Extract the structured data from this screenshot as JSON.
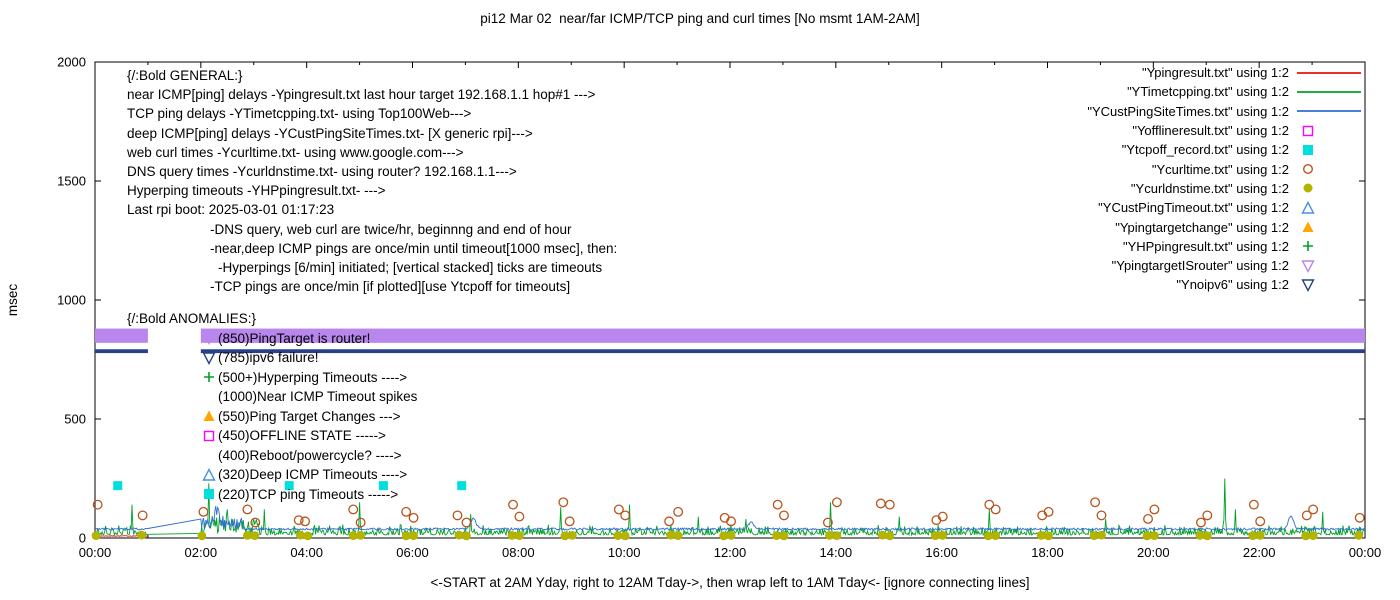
{
  "title": "pi12 Mar 02  near/far ICMP/TCP ping and curl times [No msmt 1AM-2AM]",
  "axes": {
    "y_label": "msec",
    "y_ticks": [
      "0",
      "500",
      "1000",
      "1500",
      "2000"
    ],
    "x_ticks": [
      "00:00",
      "02:00",
      "04:00",
      "06:00",
      "08:00",
      "10:00",
      "12:00",
      "14:00",
      "16:00",
      "18:00",
      "20:00",
      "22:00",
      "00:00"
    ],
    "x_label": "<-START at 2AM Yday, right to 12AM Tday->, then wrap left to 1AM Tday<- [ignore connecting lines]"
  },
  "legend": [
    {
      "label": "\"Ypingresult.txt\" using 1:2",
      "marker": "line",
      "color": "#e8120c"
    },
    {
      "label": "\"YTimetcpping.txt\" using 1:2",
      "marker": "line",
      "color": "#00a028"
    },
    {
      "label": "\"YCustPingSiteTimes.txt\" using 1:2",
      "marker": "line",
      "color": "#2f6fd0"
    },
    {
      "label": "\"Yofflineresult.txt\" using 1:2",
      "marker": "square-open",
      "color": "#ff00ff"
    },
    {
      "label": "\"Ytcpoff_record.txt\" using 1:2",
      "marker": "square-filled",
      "color": "#00dede"
    },
    {
      "label": "\"Ycurltime.txt\" using 1:2",
      "marker": "circle-open",
      "color": "#b8541a"
    },
    {
      "label": "\"Ycurldnstime.txt\" using 1:2",
      "marker": "circle-filled",
      "color": "#b3b300"
    },
    {
      "label": "\"YCustPingTimeout.txt\" using 1:2",
      "marker": "triangle-open",
      "color": "#4a90e2"
    },
    {
      "label": "\"Ypingtargetchange\" using 1:2",
      "marker": "triangle-filled",
      "color": "#ffa500"
    },
    {
      "label": "\"YHPpingresult.txt\" using 1:2",
      "marker": "plus",
      "color": "#00a028"
    },
    {
      "label": "\"YpingtargetISrouter\" using 1:2",
      "marker": "nabla-open",
      "color": "#b886ec"
    },
    {
      "label": "\"Ynoipv6\" using 1:2",
      "marker": "nabla-open",
      "color": "#27408b"
    }
  ],
  "general_notes": [
    {
      "text": "{/:Bold GENERAL:}",
      "indent": 0
    },
    {
      "text": "near ICMP[ping] delays -Ypingresult.txt last hour target 192.168.1.1 hop#1 --->",
      "indent": 0
    },
    {
      "text": "TCP ping delays -YTimetcpping.txt- using Top100Web--->",
      "indent": 0
    },
    {
      "text": "deep ICMP[ping] delays -YCustPingSiteTimes.txt- [X generic rpi]--->",
      "indent": 0
    },
    {
      "text": "web curl times -Ycurltime.txt- using www.google.com--->",
      "indent": 0
    },
    {
      "text": "DNS query times -Ycurldnstime.txt- using router? 192.168.1.1--->",
      "indent": 0
    },
    {
      "text": "Hyperping timeouts -YHPpingresult.txt- --->",
      "indent": 0
    },
    {
      "text": "Last rpi boot: 2025-03-01 01:17:23",
      "indent": 0
    },
    {
      "text": "-DNS query, web curl are twice/hr, beginnng and end of hour",
      "indent": 1
    },
    {
      "text": "-near,deep ICMP pings are once/min until timeout[1000 msec], then:",
      "indent": 1
    },
    {
      "text": "-Hyperpings [6/min] initiated; [vertical stacked] ticks are timeouts",
      "indent": 2
    },
    {
      "text": "-TCP pings are once/min [if plotted][use Ytcpoff for timeouts]",
      "indent": 1
    }
  ],
  "anomalies_title": "{/:Bold ANOMALIES:}",
  "anomalies": [
    {
      "marker": "nabla-open",
      "color": "#b886ec",
      "text": "(850)PingTarget is router!"
    },
    {
      "marker": "nabla-open",
      "color": "#27408b",
      "text": "(785)ipv6 failure!"
    },
    {
      "marker": "plus",
      "color": "#00a028",
      "text": "(500+)Hyperping Timeouts ---->"
    },
    {
      "marker": "none",
      "color": "",
      "text": "(1000)Near ICMP Timeout spikes"
    },
    {
      "marker": "triangle-filled",
      "color": "#ffa500",
      "text": "(550)Ping Target Changes --->"
    },
    {
      "marker": "square-open",
      "color": "#ff00ff",
      "text": "(450)OFFLINE STATE ----->"
    },
    {
      "marker": "none",
      "color": "",
      "text": "(400)Reboot/powercycle? ---->"
    },
    {
      "marker": "triangle-open",
      "color": "#4a90e2",
      "text": "(320)Deep ICMP Timeouts ---->"
    },
    {
      "marker": "square-filled",
      "color": "#00dede",
      "text": "(220)TCP ping Timeouts ----->"
    }
  ],
  "chart_data": {
    "type": "line",
    "title": "pi12 Mar 02  near/far ICMP/TCP ping and curl times [No msmt 1AM-2AM]",
    "xlabel": "<-START at 2AM Yday, right to 12AM Tday->, then wrap left to 1AM Tday<- [ignore connecting lines]",
    "ylabel": "msec",
    "x_unit": "hours",
    "x_range": [
      0,
      24
    ],
    "ylim": [
      0,
      2000
    ],
    "grid": false,
    "legend_position": "top-right",
    "no_measurement_window": [
      1,
      2
    ],
    "bands": [
      {
        "series": "YpingtargetISrouter",
        "y": 850,
        "thickness_msec": 60,
        "color": "#b886ec",
        "segments": [
          [
            0,
            1
          ],
          [
            2,
            24
          ]
        ]
      },
      {
        "series": "Ynoipv6",
        "y": 785,
        "thickness_msec": 16,
        "color": "#27408b",
        "segments": [
          [
            0,
            1
          ],
          [
            2,
            24
          ]
        ]
      }
    ],
    "series": [
      {
        "name": "Ypingresult.txt",
        "color": "#e8120c",
        "range": [
          0,
          1
        ],
        "base": 7,
        "noise": 3,
        "skew": false,
        "spikes": [],
        "bumps": [],
        "bursts": []
      },
      {
        "name": "YTimetcpping.txt",
        "color": "#00a028",
        "range": [
          0,
          24
        ],
        "base": 13,
        "noise": 45,
        "skew": true,
        "spikes": [
          [
            0.7,
            140
          ],
          [
            2.15,
            230
          ],
          [
            2.5,
            120
          ],
          [
            3.2,
            120
          ],
          [
            5.0,
            150
          ],
          [
            7.1,
            100
          ],
          [
            8.8,
            130
          ],
          [
            10.1,
            140
          ],
          [
            11.4,
            90
          ],
          [
            12.3,
            80
          ],
          [
            13.9,
            150
          ],
          [
            15.2,
            90
          ],
          [
            16.9,
            120
          ],
          [
            19.1,
            80
          ],
          [
            21.35,
            250
          ],
          [
            21.55,
            120
          ],
          [
            23.2,
            110
          ]
        ],
        "bumps": [],
        "bursts": [
          {
            "range": [
              2.05,
              3.1
            ],
            "extra": 55
          }
        ]
      },
      {
        "name": "YCustPingSiteTimes.txt",
        "color": "#2f6fd0",
        "range": [
          0,
          24
        ],
        "base": 33,
        "noise": 9,
        "skew": false,
        "spikes": [],
        "bumps": [
          [
            2.3,
            50
          ],
          [
            7.15,
            45
          ],
          [
            12.4,
            28
          ],
          [
            22.6,
            55
          ]
        ],
        "bursts": [
          {
            "range": [
              2.0,
              2.8
            ],
            "extra": 48
          }
        ]
      }
    ],
    "points": [
      {
        "name": "Ycurltime.txt",
        "marker": "circle-open",
        "color": "#b8541a",
        "data": [
          [
            0.05,
            140
          ],
          [
            0.9,
            95
          ],
          [
            2.05,
            110
          ],
          [
            2.88,
            120
          ],
          [
            3.03,
            65
          ],
          [
            3.85,
            75
          ],
          [
            3.97,
            70
          ],
          [
            4.88,
            120
          ],
          [
            5.02,
            65
          ],
          [
            5.88,
            110
          ],
          [
            6.02,
            85
          ],
          [
            6.85,
            95
          ],
          [
            7.02,
            65
          ],
          [
            7.9,
            140
          ],
          [
            8.02,
            90
          ],
          [
            8.85,
            150
          ],
          [
            8.97,
            70
          ],
          [
            9.9,
            120
          ],
          [
            10.02,
            95
          ],
          [
            10.85,
            70
          ],
          [
            11.02,
            110
          ],
          [
            11.9,
            85
          ],
          [
            12.02,
            70
          ],
          [
            12.9,
            140
          ],
          [
            13.02,
            95
          ],
          [
            13.85,
            65
          ],
          [
            14.02,
            150
          ],
          [
            14.85,
            145
          ],
          [
            15.02,
            140
          ],
          [
            15.9,
            75
          ],
          [
            16.02,
            90
          ],
          [
            16.9,
            140
          ],
          [
            17.02,
            120
          ],
          [
            17.9,
            95
          ],
          [
            18.02,
            110
          ],
          [
            18.9,
            150
          ],
          [
            19.02,
            95
          ],
          [
            19.9,
            80
          ],
          [
            20.02,
            120
          ],
          [
            20.9,
            65
          ],
          [
            21.02,
            95
          ],
          [
            21.9,
            140
          ],
          [
            22.02,
            70
          ],
          [
            22.9,
            95
          ],
          [
            23.02,
            120
          ],
          [
            23.9,
            85
          ]
        ]
      },
      {
        "name": "Ycurldnstime.txt",
        "marker": "circle-filled",
        "color": "#b3b300",
        "data": [
          [
            0.02,
            10
          ],
          [
            0.88,
            12
          ],
          [
            2.02,
            9
          ],
          [
            2.88,
            11
          ],
          [
            3.02,
            10
          ],
          [
            3.88,
            12
          ],
          [
            4.02,
            9
          ],
          [
            4.88,
            10
          ],
          [
            5.02,
            11
          ],
          [
            5.88,
            9
          ],
          [
            6.02,
            10
          ],
          [
            6.88,
            12
          ],
          [
            7.02,
            9
          ],
          [
            7.88,
            11
          ],
          [
            8.02,
            10
          ],
          [
            8.88,
            9
          ],
          [
            9.02,
            11
          ],
          [
            9.88,
            10
          ],
          [
            10.02,
            9
          ],
          [
            10.88,
            12
          ],
          [
            11.02,
            10
          ],
          [
            11.88,
            9
          ],
          [
            12.02,
            11
          ],
          [
            12.88,
            10
          ],
          [
            13.02,
            9
          ],
          [
            13.88,
            11
          ],
          [
            14.02,
            10
          ],
          [
            14.88,
            12
          ],
          [
            15.02,
            9
          ],
          [
            15.88,
            10
          ],
          [
            16.02,
            11
          ],
          [
            16.88,
            9
          ],
          [
            17.02,
            10
          ],
          [
            17.88,
            11
          ],
          [
            18.02,
            9
          ],
          [
            18.88,
            10
          ],
          [
            19.02,
            12
          ],
          [
            19.88,
            9
          ],
          [
            20.02,
            10
          ],
          [
            20.88,
            11
          ],
          [
            21.02,
            9
          ],
          [
            21.88,
            10
          ],
          [
            22.02,
            11
          ],
          [
            22.88,
            9
          ],
          [
            23.02,
            10
          ],
          [
            23.88,
            11
          ]
        ]
      },
      {
        "name": "Ytcpoff_record.txt",
        "marker": "square-filled",
        "color": "#00dede",
        "data": [
          [
            0.43,
            220
          ],
          [
            3.67,
            220
          ],
          [
            5.45,
            220
          ],
          [
            6.93,
            220
          ]
        ]
      }
    ]
  }
}
